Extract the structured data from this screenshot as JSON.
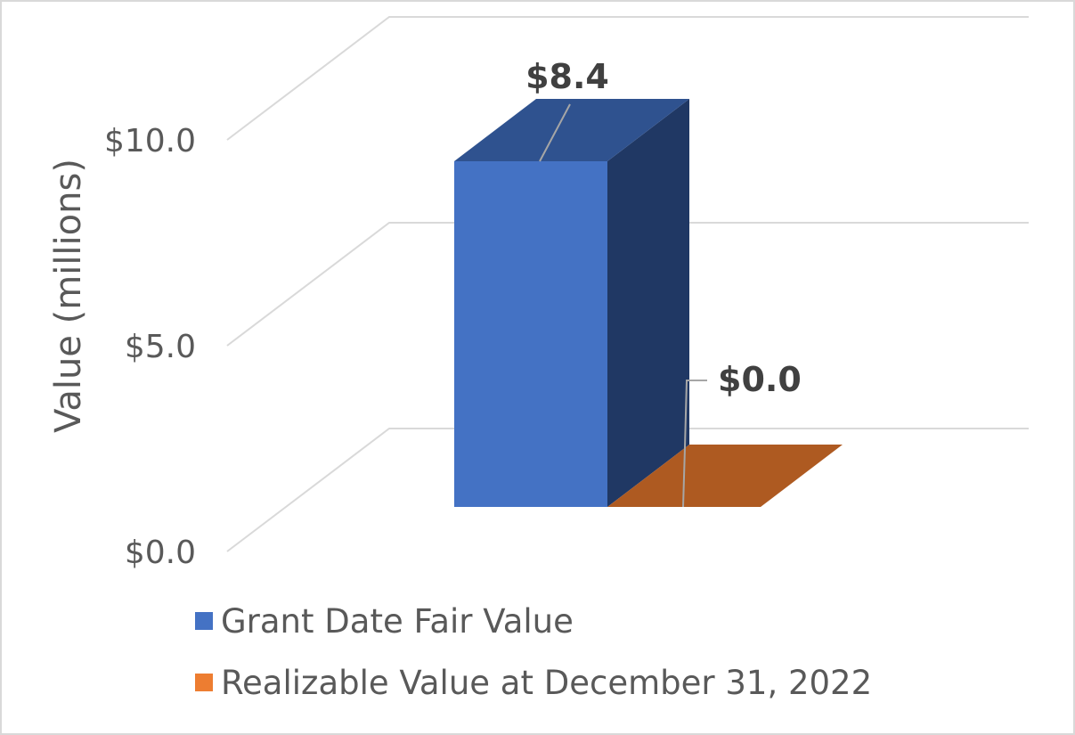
{
  "chart_data": {
    "type": "bar",
    "style": "3d-column",
    "title": "",
    "ylabel": "Value (millions)",
    "xlabel": "",
    "ylim": [
      0,
      10
    ],
    "yticks": [
      {
        "value": 0,
        "label": "$0.0"
      },
      {
        "value": 5,
        "label": "$5.0"
      },
      {
        "value": 10,
        "label": "$10.0"
      }
    ],
    "grid": true,
    "legend_position": "bottom-left",
    "series": [
      {
        "name": "Grant Date Fair Value",
        "value": 8.4,
        "label": "$8.4",
        "color": "#4472c4",
        "top_color": "#2f528f",
        "side_color": "#203864"
      },
      {
        "name": "Realizable Value at December 31, 2022",
        "value": 0.0,
        "label": "$0.0",
        "color": "#ed7d31",
        "top_color": "#ae5a21",
        "side_color": "#843c0c"
      }
    ]
  }
}
